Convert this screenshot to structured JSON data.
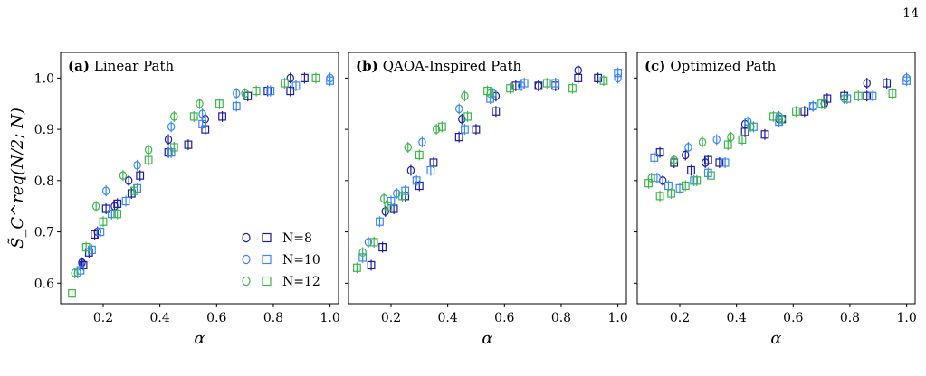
{
  "page_number": "14",
  "footer_caption": "",
  "colors": {
    "N=8": "#1c1ca8",
    "N=10": "#3a86ff",
    "N=12": "#3cb84a"
  },
  "chart_data": [
    {
      "type": "scatter",
      "panel_label": "(a)",
      "title": "Linear Path",
      "xlabel": "α",
      "ylabel": "S̃_C^req(N/2; N)",
      "xlim": [
        0.05,
        1.03
      ],
      "ylim": [
        0.56,
        1.05
      ],
      "xticks": [
        0.2,
        0.4,
        0.6,
        0.8,
        1.0
      ],
      "yticks": [
        0.6,
        0.7,
        0.8,
        0.9,
        1.0
      ],
      "grid": false,
      "legend": {
        "placement": "bottom-right",
        "entries": [
          "N=8",
          "N=10",
          "N=12"
        ]
      },
      "series": [
        {
          "name": "N=8",
          "marker": "circle",
          "points": [
            [
              0.125,
              0.64
            ],
            [
              0.18,
              0.7
            ],
            [
              0.24,
              0.75
            ],
            [
              0.29,
              0.8
            ],
            [
              0.43,
              0.88
            ],
            [
              0.56,
              0.92
            ],
            [
              0.86,
              1.0
            ]
          ]
        },
        {
          "name": "N=8",
          "marker": "square",
          "points": [
            [
              0.13,
              0.635
            ],
            [
              0.15,
              0.66
            ],
            [
              0.17,
              0.695
            ],
            [
              0.21,
              0.745
            ],
            [
              0.25,
              0.755
            ],
            [
              0.3,
              0.775
            ],
            [
              0.33,
              0.81
            ],
            [
              0.43,
              0.855
            ],
            [
              0.5,
              0.87
            ],
            [
              0.56,
              0.9
            ],
            [
              0.62,
              0.925
            ],
            [
              0.71,
              0.965
            ],
            [
              0.78,
              0.975
            ],
            [
              0.86,
              0.975
            ],
            [
              0.91,
              1.0
            ]
          ]
        },
        {
          "name": "N=10",
          "marker": "circle",
          "points": [
            [
              0.11,
              0.62
            ],
            [
              0.21,
              0.78
            ],
            [
              0.32,
              0.83
            ],
            [
              0.44,
              0.905
            ],
            [
              0.55,
              0.93
            ],
            [
              0.67,
              0.97
            ],
            [
              1.0,
              1.0
            ]
          ]
        },
        {
          "name": "N=10",
          "marker": "square",
          "points": [
            [
              0.12,
              0.625
            ],
            [
              0.16,
              0.665
            ],
            [
              0.19,
              0.7
            ],
            [
              0.23,
              0.735
            ],
            [
              0.28,
              0.76
            ],
            [
              0.32,
              0.785
            ],
            [
              0.44,
              0.855
            ],
            [
              0.55,
              0.91
            ],
            [
              0.67,
              0.945
            ],
            [
              0.79,
              0.975
            ],
            [
              0.88,
              0.985
            ],
            [
              1.0,
              0.995
            ]
          ]
        },
        {
          "name": "N=12",
          "marker": "circle",
          "points": [
            [
              0.1,
              0.62
            ],
            [
              0.175,
              0.75
            ],
            [
              0.27,
              0.81
            ],
            [
              0.36,
              0.86
            ],
            [
              0.45,
              0.925
            ],
            [
              0.54,
              0.95
            ],
            [
              0.7,
              0.97
            ]
          ]
        },
        {
          "name": "N=12",
          "marker": "square",
          "points": [
            [
              0.09,
              0.58
            ],
            [
              0.14,
              0.67
            ],
            [
              0.2,
              0.72
            ],
            [
              0.25,
              0.735
            ],
            [
              0.31,
              0.78
            ],
            [
              0.36,
              0.84
            ],
            [
              0.45,
              0.865
            ],
            [
              0.52,
              0.925
            ],
            [
              0.61,
              0.95
            ],
            [
              0.74,
              0.975
            ],
            [
              0.84,
              0.99
            ],
            [
              0.95,
              1.0
            ]
          ]
        }
      ]
    },
    {
      "type": "scatter",
      "panel_label": "(b)",
      "title": "QAOA-Inspired Path",
      "xlabel": "α",
      "ylabel": "",
      "xlim": [
        0.05,
        1.03
      ],
      "ylim": [
        0.56,
        1.05
      ],
      "xticks": [
        0.2,
        0.4,
        0.6,
        0.8,
        1.0
      ],
      "yticks": [
        0.6,
        0.7,
        0.8,
        0.9,
        1.0
      ],
      "grid": false,
      "series": [
        {
          "name": "N=8",
          "marker": "circle",
          "points": [
            [
              0.18,
              0.74
            ],
            [
              0.27,
              0.82
            ],
            [
              0.45,
              0.92
            ],
            [
              0.57,
              0.965
            ],
            [
              0.72,
              0.985
            ],
            [
              0.86,
              1.015
            ]
          ]
        },
        {
          "name": "N=8",
          "marker": "square",
          "points": [
            [
              0.13,
              0.635
            ],
            [
              0.17,
              0.67
            ],
            [
              0.21,
              0.745
            ],
            [
              0.25,
              0.77
            ],
            [
              0.3,
              0.79
            ],
            [
              0.35,
              0.835
            ],
            [
              0.44,
              0.885
            ],
            [
              0.5,
              0.9
            ],
            [
              0.57,
              0.935
            ],
            [
              0.64,
              0.985
            ],
            [
              0.72,
              0.985
            ],
            [
              0.78,
              0.985
            ],
            [
              0.86,
              1.0
            ],
            [
              0.93,
              1.0
            ]
          ]
        },
        {
          "name": "N=10",
          "marker": "circle",
          "points": [
            [
              0.12,
              0.68
            ],
            [
              0.22,
              0.775
            ],
            [
              0.31,
              0.875
            ],
            [
              0.44,
              0.94
            ],
            [
              0.56,
              0.97
            ],
            [
              0.66,
              0.985
            ],
            [
              1.0,
              1.0
            ]
          ]
        },
        {
          "name": "N=10",
          "marker": "square",
          "points": [
            [
              0.1,
              0.65
            ],
            [
              0.16,
              0.72
            ],
            [
              0.2,
              0.76
            ],
            [
              0.25,
              0.78
            ],
            [
              0.29,
              0.8
            ],
            [
              0.34,
              0.82
            ],
            [
              0.46,
              0.9
            ],
            [
              0.55,
              0.96
            ],
            [
              0.67,
              0.99
            ],
            [
              0.78,
              0.99
            ],
            [
              1.0,
              1.01
            ]
          ]
        },
        {
          "name": "N=12",
          "marker": "circle",
          "points": [
            [
              0.1,
              0.66
            ],
            [
              0.175,
              0.765
            ],
            [
              0.26,
              0.865
            ],
            [
              0.36,
              0.9
            ],
            [
              0.46,
              0.965
            ],
            [
              0.55,
              0.97
            ]
          ]
        },
        {
          "name": "N=12",
          "marker": "square",
          "points": [
            [
              0.08,
              0.63
            ],
            [
              0.14,
              0.68
            ],
            [
              0.19,
              0.75
            ],
            [
              0.24,
              0.77
            ],
            [
              0.3,
              0.85
            ],
            [
              0.38,
              0.905
            ],
            [
              0.47,
              0.925
            ],
            [
              0.54,
              0.975
            ],
            [
              0.62,
              0.98
            ],
            [
              0.75,
              0.99
            ],
            [
              0.84,
              0.98
            ],
            [
              0.95,
              0.995
            ]
          ]
        }
      ]
    },
    {
      "type": "scatter",
      "panel_label": "(c)",
      "title": "Optimized Path",
      "xlabel": "α",
      "ylabel": "",
      "xlim": [
        0.05,
        1.03
      ],
      "ylim": [
        0.56,
        1.05
      ],
      "xticks": [
        0.2,
        0.4,
        0.6,
        0.8,
        1.0
      ],
      "yticks": [
        0.6,
        0.7,
        0.8,
        0.9,
        1.0
      ],
      "grid": false,
      "series": [
        {
          "name": "N=8",
          "marker": "circle",
          "points": [
            [
              0.14,
              0.8
            ],
            [
              0.22,
              0.85
            ],
            [
              0.29,
              0.835
            ],
            [
              0.43,
              0.91
            ],
            [
              0.55,
              0.92
            ],
            [
              0.71,
              0.95
            ],
            [
              0.86,
              0.99
            ]
          ]
        },
        {
          "name": "N=8",
          "marker": "square",
          "points": [
            [
              0.13,
              0.855
            ],
            [
              0.18,
              0.835
            ],
            [
              0.24,
              0.82
            ],
            [
              0.3,
              0.84
            ],
            [
              0.34,
              0.835
            ],
            [
              0.43,
              0.895
            ],
            [
              0.5,
              0.89
            ],
            [
              0.56,
              0.92
            ],
            [
              0.64,
              0.935
            ],
            [
              0.72,
              0.96
            ],
            [
              0.78,
              0.965
            ],
            [
              0.86,
              0.965
            ],
            [
              0.93,
              0.99
            ]
          ]
        },
        {
          "name": "N=10",
          "marker": "circle",
          "points": [
            [
              0.12,
              0.805
            ],
            [
              0.23,
              0.865
            ],
            [
              0.33,
              0.88
            ],
            [
              0.44,
              0.915
            ],
            [
              0.55,
              0.925
            ],
            [
              0.67,
              0.945
            ],
            [
              1.0,
              1.0
            ]
          ]
        },
        {
          "name": "N=10",
          "marker": "square",
          "points": [
            [
              0.11,
              0.845
            ],
            [
              0.16,
              0.79
            ],
            [
              0.2,
              0.785
            ],
            [
              0.25,
              0.8
            ],
            [
              0.3,
              0.815
            ],
            [
              0.36,
              0.835
            ],
            [
              0.46,
              0.905
            ],
            [
              0.55,
              0.915
            ],
            [
              0.67,
              0.945
            ],
            [
              0.79,
              0.96
            ],
            [
              0.88,
              0.965
            ],
            [
              1.0,
              0.995
            ]
          ]
        },
        {
          "name": "N=12",
          "marker": "circle",
          "points": [
            [
              0.1,
              0.805
            ],
            [
              0.18,
              0.84
            ],
            [
              0.28,
              0.875
            ],
            [
              0.38,
              0.885
            ],
            [
              0.45,
              0.905
            ],
            [
              0.56,
              0.92
            ],
            [
              0.78,
              0.96
            ]
          ]
        },
        {
          "name": "N=12",
          "marker": "square",
          "points": [
            [
              0.09,
              0.795
            ],
            [
              0.13,
              0.77
            ],
            [
              0.17,
              0.775
            ],
            [
              0.22,
              0.79
            ],
            [
              0.26,
              0.8
            ],
            [
              0.31,
              0.81
            ],
            [
              0.37,
              0.87
            ],
            [
              0.42,
              0.88
            ],
            [
              0.53,
              0.925
            ],
            [
              0.61,
              0.935
            ],
            [
              0.7,
              0.95
            ],
            [
              0.83,
              0.965
            ],
            [
              0.95,
              0.97
            ]
          ]
        }
      ]
    }
  ]
}
